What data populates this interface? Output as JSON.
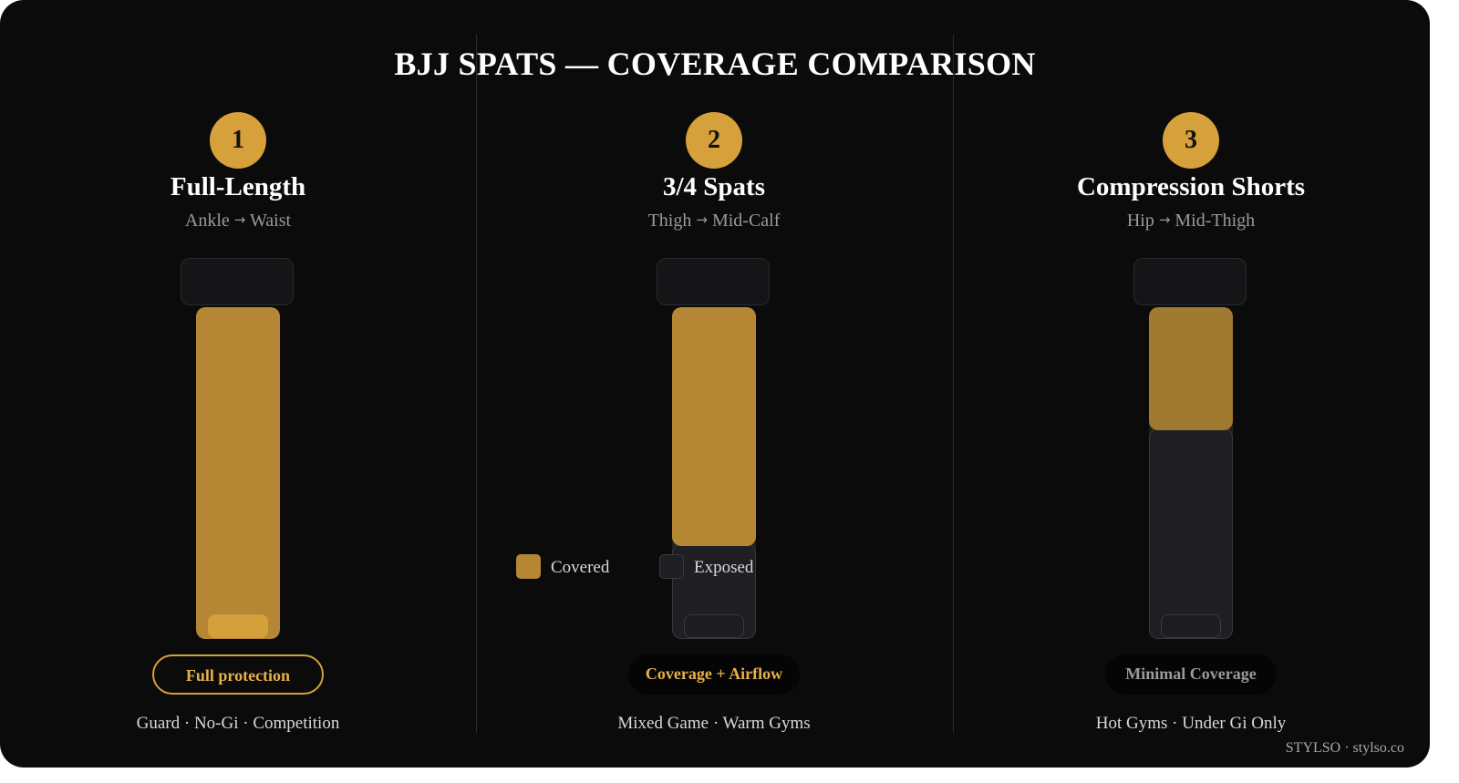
{
  "title": "BJJ SPATS — COVERAGE COMPARISON",
  "colors": {
    "gold": "#d6a03a",
    "covered_full": "#b58633",
    "covered_34": "#b58633",
    "covered_shorts": "#a07a30",
    "exposed": "#1f1f23",
    "background": "#0b0b0b"
  },
  "legend": {
    "covered": "Covered",
    "exposed": "Exposed"
  },
  "columns": [
    {
      "number": "1",
      "name": "Full-Length",
      "range_from": "Ankle",
      "range_to": "Waist",
      "coverage_fraction": 1.0,
      "tag": "Full protection",
      "uses": "Guard · No-Gi · Competition"
    },
    {
      "number": "2",
      "name": "3/4 Spats",
      "range_from": "Thigh",
      "range_to": "Mid-Calf",
      "coverage_fraction": 0.72,
      "tag": "Coverage + Airflow",
      "uses": "Mixed Game · Warm Gyms"
    },
    {
      "number": "3",
      "name": "Compression Shorts",
      "range_from": "Hip",
      "range_to": "Mid-Thigh",
      "coverage_fraction": 0.37,
      "tag": "Minimal Coverage",
      "uses": "Hot Gyms · Under Gi Only"
    }
  ],
  "footer": "STYLSO · stylso.co"
}
